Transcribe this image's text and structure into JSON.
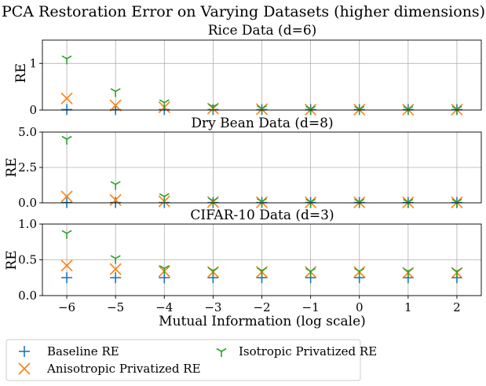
{
  "figure": {
    "title": "PCA Restoration Error on Varying Datasets (higher dimensions)"
  },
  "colors": {
    "baseline": "#1f77b4",
    "anisotropic": "#ff7f0e",
    "isotropic": "#2ca02c"
  },
  "chart_data": [
    {
      "type": "scatter",
      "title": "Rice Data (d=6)",
      "xlabel": "",
      "ylabel": "RE",
      "x": [
        -6,
        -5,
        -4,
        -3,
        -2,
        -1,
        0,
        1,
        2
      ],
      "xlim": [
        -6.5,
        2.5
      ],
      "ylim": [
        0,
        1.5
      ],
      "yticks": [
        0,
        1
      ],
      "xticks_visible": false,
      "grid": true,
      "series": [
        {
          "name": "Baseline RE",
          "marker": "+",
          "values": [
            0.01,
            0.01,
            0.01,
            0.01,
            0.01,
            0.01,
            0.01,
            0.01,
            0.01
          ]
        },
        {
          "name": "Anisotropic Privatized RE",
          "marker": "x",
          "values": [
            0.25,
            0.1,
            0.06,
            0.03,
            0.02,
            0.01,
            0.01,
            0.01,
            0.01
          ]
        },
        {
          "name": "Isotropic Privatized RE",
          "marker": "tri",
          "values": [
            1.1,
            0.4,
            0.16,
            0.07,
            0.03,
            0.02,
            0.02,
            0.02,
            0.02
          ]
        }
      ]
    },
    {
      "type": "scatter",
      "title": "Dry Bean Data (d=8)",
      "xlabel": "",
      "ylabel": "RE",
      "x": [
        -6,
        -5,
        -4,
        -3,
        -2,
        -1,
        0,
        1,
        2
      ],
      "xlim": [
        -6.5,
        2.5
      ],
      "ylim": [
        0,
        5.0
      ],
      "yticks": [
        0.0,
        2.5,
        5.0
      ],
      "xticks_visible": false,
      "grid": true,
      "series": [
        {
          "name": "Baseline RE",
          "marker": "+",
          "values": [
            0.02,
            0.02,
            0.02,
            0.02,
            0.02,
            0.02,
            0.02,
            0.02,
            0.02
          ]
        },
        {
          "name": "Anisotropic Privatized RE",
          "marker": "x",
          "values": [
            0.45,
            0.2,
            0.1,
            0.05,
            0.04,
            0.03,
            0.03,
            0.03,
            0.03
          ]
        },
        {
          "name": "Isotropic Privatized RE",
          "marker": "tri",
          "values": [
            4.5,
            1.3,
            0.45,
            0.15,
            0.1,
            0.06,
            0.06,
            0.05,
            0.05
          ]
        }
      ]
    },
    {
      "type": "scatter",
      "title": "CIFAR-10 Data (d=3)",
      "xlabel": "Mutual Information (log scale)",
      "ylabel": "RE",
      "x": [
        -6,
        -5,
        -4,
        -3,
        -2,
        -1,
        0,
        1,
        2
      ],
      "xlim": [
        -6.5,
        2.5
      ],
      "ylim": [
        0,
        1.0
      ],
      "yticks": [
        0.0,
        0.5,
        1.0
      ],
      "xticks_visible": true,
      "grid": true,
      "series": [
        {
          "name": "Baseline RE",
          "marker": "+",
          "values": [
            0.25,
            0.25,
            0.25,
            0.25,
            0.25,
            0.25,
            0.25,
            0.25,
            0.25
          ]
        },
        {
          "name": "Anisotropic Privatized RE",
          "marker": "x",
          "values": [
            0.42,
            0.37,
            0.34,
            0.33,
            0.33,
            0.33,
            0.33,
            0.32,
            0.32
          ]
        },
        {
          "name": "Isotropic Privatized RE",
          "marker": "tri",
          "values": [
            0.87,
            0.52,
            0.38,
            0.35,
            0.35,
            0.34,
            0.34,
            0.34,
            0.34
          ]
        }
      ]
    }
  ],
  "legend": {
    "position": "bottom-left",
    "items": [
      "Baseline RE",
      "Anisotropic Privatized RE",
      "Isotropic Privatized RE"
    ]
  }
}
